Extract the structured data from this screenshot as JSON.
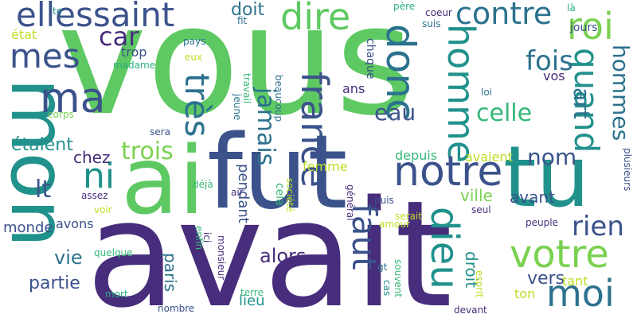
{
  "cloud": {
    "colors": {
      "green": "#5ec962",
      "teal": "#21918c",
      "dark_teal": "#2c728e",
      "blue": "#3b528b",
      "purple": "#472d7b",
      "light_green": "#7ad151",
      "yellow": "#bddf26",
      "sea": "#28ae80",
      "mint": "#35b779"
    },
    "words": [
      {
        "text": "vous",
        "color": "#5ec962"
      },
      {
        "text": "avait",
        "color": "#472d7b"
      },
      {
        "text": "fut",
        "color": "#3b528b"
      },
      {
        "text": "ai",
        "color": "#5ec962"
      },
      {
        "text": "tu",
        "color": "#21918c"
      },
      {
        "text": "mon",
        "color": "#21918c"
      },
      {
        "text": "ellessaint",
        "color": "#3b528b"
      },
      {
        "text": "dire",
        "color": "#5ec962"
      },
      {
        "text": "contre",
        "color": "#2c728e"
      },
      {
        "text": "roi",
        "color": "#7ad151"
      },
      {
        "text": "car",
        "color": "#472d7b"
      },
      {
        "text": "mes",
        "color": "#3b528b"
      },
      {
        "text": "ma",
        "color": "#3b528b"
      },
      {
        "text": "donc",
        "color": "#2c728e"
      },
      {
        "text": "homme",
        "color": "#21918c"
      },
      {
        "text": "quand",
        "color": "#21918c"
      },
      {
        "text": "hommes",
        "color": "#2c728e"
      },
      {
        "text": "fois",
        "color": "#2c728e"
      },
      {
        "text": "art",
        "color": "#2c728e"
      },
      {
        "text": "france",
        "color": "#3b528b"
      },
      {
        "text": "très",
        "color": "#2c728e"
      },
      {
        "text": "trois",
        "color": "#7ad151"
      },
      {
        "text": "notre",
        "color": "#3b528b"
      },
      {
        "text": "ni",
        "color": "#21918c"
      },
      {
        "text": "lt",
        "color": "#3b528b"
      },
      {
        "text": "jamais",
        "color": "#2c728e"
      },
      {
        "text": "eau",
        "color": "#3b528b"
      },
      {
        "text": "celle",
        "color": "#35b779"
      },
      {
        "text": "étaient",
        "color": "#21918c"
      },
      {
        "text": "chez",
        "color": "#472d7b"
      },
      {
        "text": "nom",
        "color": "#3b528b"
      },
      {
        "text": "dieu",
        "color": "#21918c"
      },
      {
        "text": "faut",
        "color": "#3b528b"
      },
      {
        "text": "votre",
        "color": "#7ad151"
      },
      {
        "text": "moi",
        "color": "#2c728e"
      },
      {
        "text": "rien",
        "color": "#3b528b"
      },
      {
        "text": "avant",
        "color": "#3b528b"
      },
      {
        "text": "ville",
        "color": "#7ad151"
      },
      {
        "text": "alors",
        "color": "#472d7b"
      },
      {
        "text": "vie",
        "color": "#2c728e"
      },
      {
        "text": "monde",
        "color": "#3b528b"
      },
      {
        "text": "avons",
        "color": "#3b528b"
      },
      {
        "text": "partie",
        "color": "#3b528b"
      },
      {
        "text": "paris",
        "color": "#2c728e"
      },
      {
        "text": "pendant",
        "color": "#3b528b"
      },
      {
        "text": "vers",
        "color": "#3b528b"
      },
      {
        "text": "droit",
        "color": "#21918c"
      },
      {
        "text": "tant",
        "color": "#bddf26"
      },
      {
        "text": "ton",
        "color": "#bddf26"
      },
      {
        "text": "lieu",
        "color": "#21918c"
      },
      {
        "text": "avaient",
        "color": "#bddf26"
      },
      {
        "text": "depuis",
        "color": "#35b779"
      },
      {
        "text": "femme",
        "color": "#bddf26"
      },
      {
        "text": "doit",
        "color": "#2c728e"
      },
      {
        "text": "état",
        "color": "#bddf26"
      },
      {
        "text": "te",
        "color": "#21918c"
      },
      {
        "text": "trop",
        "color": "#3b528b"
      },
      {
        "text": "madame",
        "color": "#28ae80"
      },
      {
        "text": "eux",
        "color": "#bddf26"
      },
      {
        "text": "pays",
        "color": "#2c728e"
      },
      {
        "text": "fit",
        "color": "#2c728e"
      },
      {
        "text": "vos",
        "color": "#472d7b"
      },
      {
        "text": "ans",
        "color": "#472d7b"
      },
      {
        "text": "chaque",
        "color": "#3b528b"
      },
      {
        "text": "père",
        "color": "#28ae80"
      },
      {
        "text": "coeur",
        "color": "#472d7b"
      },
      {
        "text": "suis",
        "color": "#2c728e"
      },
      {
        "text": "jours",
        "color": "#3b528b"
      },
      {
        "text": "là",
        "color": "#28ae80"
      },
      {
        "text": "loi",
        "color": "#2c728e"
      },
      {
        "text": "corps",
        "color": "#7ad151"
      },
      {
        "text": "sera",
        "color": "#3b528b"
      },
      {
        "text": "jeune",
        "color": "#2c728e"
      },
      {
        "text": "travail",
        "color": "#35b779"
      },
      {
        "text": "beaucoup",
        "color": "#2c728e"
      },
      {
        "text": "plusieurs",
        "color": "#3b528b"
      },
      {
        "text": "assez",
        "color": "#472d7b"
      },
      {
        "text": "voir",
        "color": "#bddf26"
      },
      {
        "text": "déjà",
        "color": "#35b779"
      },
      {
        "text": "air",
        "color": "#472d7b"
      },
      {
        "text": "cela",
        "color": "#35b779"
      },
      {
        "text": "société",
        "color": "#bddf26"
      },
      {
        "text": "général",
        "color": "#472d7b"
      },
      {
        "text": "puis",
        "color": "#3b528b"
      },
      {
        "text": "serait",
        "color": "#bddf26"
      },
      {
        "text": "amour",
        "color": "#bddf26"
      },
      {
        "text": "seul",
        "color": "#472d7b"
      },
      {
        "text": "peuple",
        "color": "#472d7b"
      },
      {
        "text": "enfin",
        "color": "#35b779"
      },
      {
        "text": "ici",
        "color": "#472d7b"
      },
      {
        "text": "monsieur",
        "color": "#472d7b"
      },
      {
        "text": "quelque",
        "color": "#35b779"
      },
      {
        "text": "gt",
        "color": "#2c728e"
      },
      {
        "text": "cas",
        "color": "#21918c"
      },
      {
        "text": "souvent",
        "color": "#35b779"
      },
      {
        "text": "esprit",
        "color": "#bddf26"
      },
      {
        "text": "mort",
        "color": "#28ae80"
      },
      {
        "text": "terre",
        "color": "#35b779"
      },
      {
        "text": "nombre",
        "color": "#3b528b"
      },
      {
        "text": "devant",
        "color": "#472d7b"
      }
    ]
  }
}
